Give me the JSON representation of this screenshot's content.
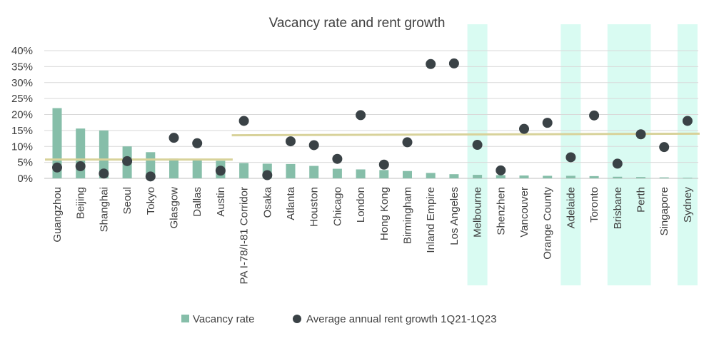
{
  "chart_data": {
    "type": "bar",
    "title": "Vacancy rate and rent growth",
    "categories": [
      "Guangzhou",
      "Beijing",
      "Shanghai",
      "Seoul",
      "Tokyo",
      "Glasgow",
      "Dallas",
      "Austin",
      "PA I-78/I-81 Corridor",
      "Osaka",
      "Atlanta",
      "Houston",
      "Chicago",
      "London",
      "Hong Kong",
      "Birmingham",
      "Inland Empire",
      "Los Angeles",
      "Melbourne",
      "Shenzhen",
      "Vancouver",
      "Orange County",
      "Adelaide",
      "Toronto",
      "Brisbane",
      "Perth",
      "Singapore",
      "Sydney"
    ],
    "series": [
      {
        "name": "Vacancy rate",
        "kind": "bar",
        "color": "#86BEA9",
        "values": [
          22,
          15.6,
          15,
          10,
          8.2,
          6.2,
          5.9,
          5.5,
          4.8,
          4.6,
          4.5,
          3.9,
          3.0,
          2.8,
          2.6,
          2.3,
          1.7,
          1.3,
          1.1,
          1.0,
          0.9,
          0.8,
          0.8,
          0.7,
          0.5,
          0.4,
          0.3,
          0.2
        ]
      },
      {
        "name": "Average annual rent growth 1Q21-1Q23",
        "kind": "scatter",
        "color": "#3A4246",
        "values": [
          3.4,
          3.8,
          1.5,
          5.4,
          0.6,
          12.7,
          11.0,
          2.4,
          18.0,
          1.0,
          11.6,
          10.4,
          6.1,
          19.8,
          4.3,
          11.3,
          35.8,
          36.0,
          10.5,
          2.5,
          15.5,
          17.4,
          6.6,
          19.7,
          4.6,
          13.8,
          9.8,
          18.0
        ]
      }
    ],
    "reference_lines": [
      {
        "value": 5.9,
        "from": "Guangzhou",
        "to": "Austin",
        "color": "#D8D29A"
      },
      {
        "value": 13.5,
        "from": "PA I-78/I-81 Corridor",
        "to": "Sydney",
        "end_value": 14.0,
        "color": "#D8D29A"
      }
    ],
    "highlighted_categories": [
      "Melbourne",
      "Adelaide",
      "Brisbane",
      "Perth",
      "Sydney"
    ],
    "highlight_color": "#D9FBF2",
    "ylim": [
      0,
      40
    ],
    "yticks": [
      0,
      5,
      10,
      15,
      20,
      25,
      30,
      35,
      40
    ],
    "ytick_suffix": "%",
    "grid": true,
    "legend_position": "bottom"
  }
}
